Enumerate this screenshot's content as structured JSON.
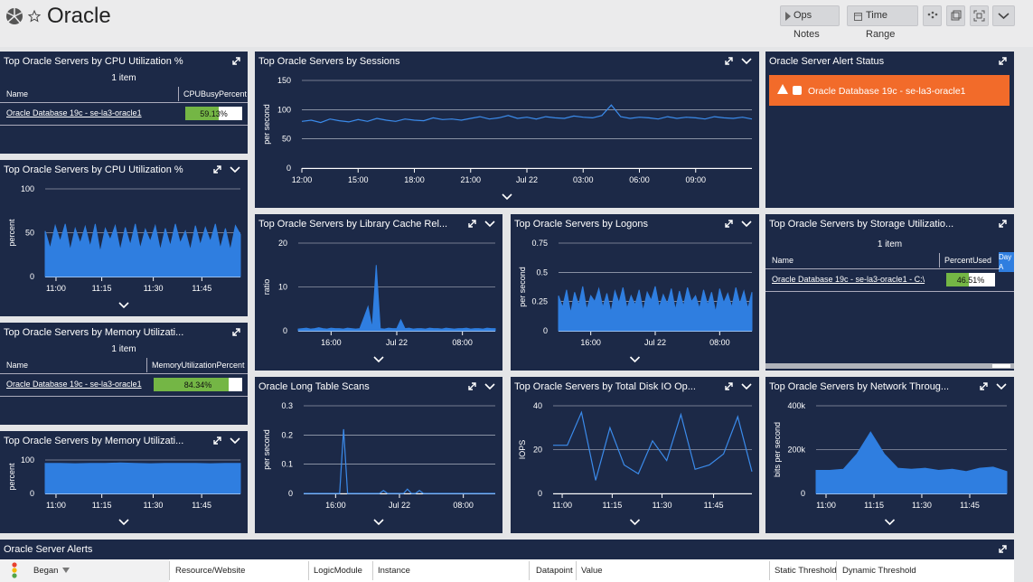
{
  "header": {
    "title": "Oracle",
    "buttons": [
      "Ops Notes",
      "Time Range"
    ]
  },
  "widgets": [
    {
      "kind": "table",
      "title": "Top Oracle Servers by CPU Utilization %",
      "count_label": "1 item",
      "columns": [
        "Name",
        "CPUBusyPercent"
      ],
      "rows": [
        {
          "name": "Oracle Database 19c - se-la3-oracle1",
          "value": 59.13,
          "value_label": "59.13%"
        }
      ]
    },
    {
      "kind": "chart",
      "title": "Top Oracle Servers by CPU Utilization %",
      "chart_data": {
        "type": "area",
        "y_label": "percent",
        "ylim": [
          0,
          100
        ],
        "yticks": [
          0,
          50,
          100
        ],
        "xlim": [
          0,
          39
        ],
        "xticks": [
          {
            "value": 2.16,
            "label": "11:00"
          },
          {
            "value": 11.3,
            "label": "11:15"
          },
          {
            "value": 21.6,
            "label": "11:30"
          },
          {
            "value": 31.3,
            "label": "11:45"
          }
        ],
        "grid": true,
        "series": [
          {
            "color": "#2f7ee0",
            "values": [
              52,
              32,
              58,
              40,
              60,
              30,
              55,
              38,
              57,
              34,
              60,
              28,
              55,
              42,
              58,
              30,
              56,
              36,
              60,
              32,
              54,
              40,
              58,
              30,
              55,
              35,
              60,
              38,
              52,
              30,
              58,
              36,
              56,
              40,
              60,
              32,
              55,
              30,
              58,
              48
            ]
          }
        ]
      }
    },
    {
      "kind": "table",
      "title": "Top Oracle Servers by Memory Utilizati...",
      "count_label": "1 item",
      "columns": [
        "Name",
        "MemoryUtilizationPercent"
      ],
      "rows": [
        {
          "name": "Oracle Database 19c - se-la3-oracle1",
          "value": 84.34,
          "value_label": "84.34%"
        }
      ]
    },
    {
      "kind": "chart",
      "title": "Top Oracle Servers by Memory Utilizati...",
      "chart_data": {
        "type": "area",
        "y_label": "percent",
        "ylim": [
          0,
          100
        ],
        "yticks": [
          0,
          100
        ],
        "xlim": [
          0,
          13
        ],
        "xticks": [
          {
            "value": 0.72,
            "label": "11:00"
          },
          {
            "value": 3.77,
            "label": "11:15"
          },
          {
            "value": 7.19,
            "label": "11:30"
          },
          {
            "value": 10.42,
            "label": "11:45"
          }
        ],
        "grid": true,
        "series": [
          {
            "color": "#2f7ee0",
            "values": [
              90,
              90,
              89,
              90,
              90,
              91,
              90,
              89,
              90,
              90,
              90,
              89,
              90,
              90
            ]
          }
        ]
      }
    },
    {
      "kind": "chart",
      "title": "Top Oracle Servers by Sessions",
      "chart_data": {
        "type": "line",
        "y_label": "per second",
        "ylim": [
          0,
          150
        ],
        "yticks": [
          0,
          50,
          100,
          150
        ],
        "xlim": [
          0,
          48
        ],
        "xticks": [
          {
            "value": 0,
            "label": "12:00"
          },
          {
            "value": 6,
            "label": "15:00"
          },
          {
            "value": 12,
            "label": "18:00"
          },
          {
            "value": 18,
            "label": "21:00"
          },
          {
            "value": 24,
            "label": "Jul 22"
          },
          {
            "value": 30,
            "label": "03:00"
          },
          {
            "value": 36,
            "label": "06:00"
          },
          {
            "value": 42,
            "label": "09:00"
          }
        ],
        "grid": true,
        "series": [
          {
            "color": "#3b8beb",
            "values": [
              80,
              82,
              78,
              84,
              81,
              79,
              83,
              80,
              85,
              82,
              80,
              84,
              82,
              81,
              86,
              83,
              84,
              82,
              85,
              88,
              84,
              86,
              90,
              85,
              87,
              84,
              88,
              86,
              85,
              89,
              87,
              86,
              90,
              108,
              88,
              85,
              87,
              86,
              84,
              88,
              85,
              87,
              86,
              84,
              88,
              86,
              85,
              87,
              84
            ]
          }
        ]
      }
    },
    {
      "kind": "chart",
      "title": "Top Oracle Servers by Library Cache Rel...",
      "chart_data": {
        "type": "area",
        "y_label": "ratio",
        "ylim": [
          0,
          20
        ],
        "yticks": [
          0,
          10,
          20
        ],
        "xlim": [
          0,
          48
        ],
        "xticks": [
          {
            "value": 8,
            "label": "16:00"
          },
          {
            "value": 24,
            "label": "Jul 22"
          },
          {
            "value": 40,
            "label": "08:00"
          }
        ],
        "grid": true,
        "series": [
          {
            "color": "#2f7ee0",
            "values": [
              0.4,
              0.5,
              0.6,
              0.4,
              0.5,
              0.7,
              0.5,
              0.4,
              0.6,
              0.5,
              0.5,
              0.4,
              0.6,
              0.5,
              0.4,
              0.5,
              3,
              5.5,
              0.6,
              15,
              0.5,
              0.4,
              0.6,
              0.5,
              0.5,
              2.5,
              0.5,
              0.6,
              0.4,
              0.5,
              0.5,
              0.4,
              0.6,
              0.5,
              0.5,
              0.4,
              0.6,
              0.5,
              0.4,
              0.5,
              0.5,
              0.6,
              0.4,
              0.5,
              0.5,
              0.4,
              0.6,
              0.5,
              0.5
            ]
          }
        ]
      }
    },
    {
      "kind": "chart",
      "title": "Oracle Long Table Scans",
      "chart_data": {
        "type": "line",
        "y_label": "per second",
        "ylim": [
          0,
          0.3
        ],
        "yticks": [
          0,
          0.1,
          0.2,
          0.3
        ],
        "xlim": [
          0,
          48
        ],
        "xticks": [
          {
            "value": 8,
            "label": "16:00"
          },
          {
            "value": 24,
            "label": "Jul 22"
          },
          {
            "value": 40,
            "label": "08:00"
          }
        ],
        "grid": true,
        "series": [
          {
            "color": "#3b8beb",
            "values": [
              0,
              0,
              0,
              0,
              0,
              0,
              0,
              0,
              0,
              0,
              0.22,
              0,
              0,
              0,
              0,
              0,
              0,
              0,
              0,
              0,
              0.01,
              0,
              0,
              0,
              0,
              0,
              0.015,
              0,
              0,
              0.01,
              0,
              0,
              0,
              0,
              0,
              0,
              0,
              0,
              0,
              0,
              0,
              0,
              0,
              0,
              0,
              0,
              0,
              0,
              0
            ]
          }
        ]
      }
    },
    {
      "kind": "chart",
      "title": "Top Oracle Servers by Logons",
      "chart_data": {
        "type": "area",
        "y_label": "per second",
        "ylim": [
          0,
          0.75
        ],
        "yticks": [
          0,
          0.25,
          0.5,
          0.75
        ],
        "xlim": [
          0,
          48
        ],
        "xticks": [
          {
            "value": 8,
            "label": "16:00"
          },
          {
            "value": 24,
            "label": "Jul 22"
          },
          {
            "value": 40,
            "label": "08:00"
          }
        ],
        "grid": true,
        "series": [
          {
            "color": "#2f7ee0",
            "values": [
              0.3,
              0.2,
              0.35,
              0.15,
              0.33,
              0.22,
              0.38,
              0.18,
              0.3,
              0.25,
              0.36,
              0.2,
              0.32,
              0.16,
              0.34,
              0.24,
              0.37,
              0.19,
              0.3,
              0.22,
              0.35,
              0.17,
              0.33,
              0.26,
              0.38,
              0.2,
              0.31,
              0.23,
              0.36,
              0.18,
              0.34,
              0.21,
              0.37,
              0.25,
              0.3,
              0.19,
              0.35,
              0.22,
              0.33,
              0.16,
              0.36,
              0.24,
              0.32,
              0.2,
              0.37,
              0.23,
              0.34,
              0.19,
              0.33
            ]
          }
        ]
      }
    },
    {
      "kind": "chart",
      "title": "Top Oracle Servers by Total Disk IO Op...",
      "chart_data": {
        "type": "line",
        "y_label": "IOPS",
        "ylim": [
          0,
          40
        ],
        "yticks": [
          0,
          20,
          40
        ],
        "xlim": [
          0,
          14
        ],
        "xticks": [
          {
            "value": 0.64,
            "label": "11:00"
          },
          {
            "value": 4.16,
            "label": "11:15"
          },
          {
            "value": 7.67,
            "label": "11:30"
          },
          {
            "value": 11.3,
            "label": "11:45"
          }
        ],
        "grid": true,
        "series": [
          {
            "color": "#3b8beb",
            "values": [
              22,
              22,
              37,
              6,
              30,
              13,
              9,
              24,
              15,
              36,
              11,
              13,
              18,
              35,
              10
            ]
          }
        ]
      }
    },
    {
      "kind": "alert",
      "title": "Oracle Server Alert Status",
      "items": [
        "Oracle Database 19c - se-la3-oracle1"
      ]
    },
    {
      "kind": "table",
      "title": "Top Oracle Servers by Storage Utilizatio...",
      "count_label": "1 item",
      "columns": [
        "Name",
        "PercentUsed",
        "Day A"
      ],
      "rows": [
        {
          "name": "Oracle Database 19c - se-la3-oracle1 - C:\\",
          "value": 46.51,
          "value_label": "46.51%"
        }
      ]
    },
    {
      "kind": "chart",
      "title": "Top Oracle Servers by Network Throug...",
      "chart_data": {
        "type": "area",
        "y_label": "bits per second",
        "ylim": [
          0,
          400000
        ],
        "yticks": [
          0,
          {
            "value": 200000,
            "label": "200k"
          },
          {
            "value": 400000,
            "label": "400k"
          }
        ],
        "xlim": [
          0,
          14
        ],
        "xticks": [
          {
            "value": 0.73,
            "label": "11:00"
          },
          {
            "value": 4.25,
            "label": "11:15"
          },
          {
            "value": 7.76,
            "label": "11:30"
          },
          {
            "value": 11.28,
            "label": "11:45"
          }
        ],
        "grid": true,
        "series": [
          {
            "color": "#2f7ee0",
            "values": [
              105000,
              105000,
              110000,
              180000,
              280000,
              180000,
              115000,
              110000,
              115000,
              105000,
              110000,
              100000,
              115000,
              120000,
              100000
            ]
          }
        ]
      }
    }
  ],
  "alerts_table": {
    "title": "Oracle Server Alerts",
    "columns": [
      "Began",
      "Resource/Website",
      "LogicModule",
      "Instance",
      "Datapoint",
      "Value",
      "Static Threshold",
      "Dynamic Threshold"
    ]
  }
}
